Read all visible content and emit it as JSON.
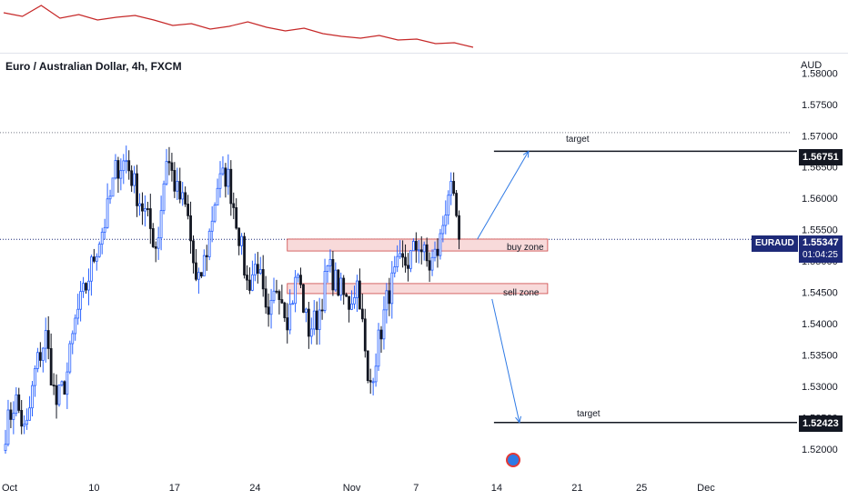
{
  "chart_title": "Euro / Australian Dollar, 4h, FXCM",
  "currency_label": "AUD",
  "colors": {
    "up_candle": "#2962ff",
    "down_candle": "#131722",
    "indicator_line": "#c62828",
    "zone_fill": "#f8dada",
    "zone_border": "#c44",
    "arrow": "#2f7ae5",
    "price_tag": "#1e2a78"
  },
  "annotations": {
    "target_upper": "target",
    "target_lower": "target",
    "buy_zone": "buy zone",
    "sell_zone": "sell zone"
  },
  "price_tags": {
    "upper_target": "1.56751",
    "lower_target": "1.52423",
    "symbol": "EURAUD",
    "current_price": "1.55347",
    "countdown": "01:04:25"
  },
  "chart_data": {
    "type": "candlestick",
    "title": "Euro / Australian Dollar, 4h, FXCM",
    "ylabel": "AUD",
    "ylim": [
      1.5165,
      1.5815
    ],
    "y_ticks": [
      1.58,
      1.575,
      1.57,
      1.565,
      1.56,
      1.555,
      1.55,
      1.545,
      1.54,
      1.535,
      1.53,
      1.525,
      1.52
    ],
    "y_tick_labels": [
      "1.58000",
      "1.57500",
      "1.57000",
      "1.56500",
      "1.56000",
      "1.55500",
      "1.55000",
      "1.54500",
      "1.54000",
      "1.53500",
      "1.53000",
      "1.52500",
      "1.52000"
    ],
    "x_ticks": [
      {
        "label": "Oct",
        "bar": 0
      },
      {
        "label": "10",
        "bar": 33
      },
      {
        "label": "17",
        "bar": 63
      },
      {
        "label": "24",
        "bar": 93
      },
      {
        "label": "Nov",
        "bar": 129
      },
      {
        "label": "7",
        "bar": 153
      },
      {
        "label": "14",
        "bar": 183
      },
      {
        "label": "21",
        "bar": 213
      },
      {
        "label": "25",
        "bar": 237
      },
      {
        "label": "Dec",
        "bar": 261
      }
    ],
    "close_path": [
      1.523,
      1.528,
      1.522,
      1.533,
      1.538,
      1.527,
      1.531,
      1.541,
      1.546,
      1.552,
      1.557,
      1.565,
      1.566,
      1.561,
      1.557,
      1.552,
      1.567,
      1.561,
      1.558,
      1.545,
      1.552,
      1.562,
      1.564,
      1.556,
      1.546,
      1.55,
      1.539,
      1.547,
      1.541,
      1.548,
      1.539,
      1.541,
      1.549,
      1.546,
      1.543,
      1.547,
      1.529,
      1.537,
      1.545,
      1.549,
      1.55,
      1.553,
      1.549,
      1.552,
      1.562,
      1.5547
    ],
    "n_bars": 170,
    "current_price": 1.55347,
    "upper_dotted_level": 1.5705,
    "zones": [
      {
        "name": "buy zone",
        "low": 1.5516,
        "high": 1.5535,
        "from_bar": 105,
        "to_bar": 202
      },
      {
        "name": "sell zone",
        "low": 1.5448,
        "high": 1.5464,
        "from_bar": 105,
        "to_bar": 202
      }
    ],
    "targets": [
      {
        "name": "target",
        "price": 1.56751,
        "from_bar": 182
      },
      {
        "name": "target",
        "price": 1.52423,
        "from_bar": 182
      }
    ],
    "indicator_path": [
      10,
      14,
      2,
      16,
      12,
      18,
      15,
      13,
      18,
      24,
      22,
      28,
      25,
      20,
      26,
      30,
      27,
      33,
      36,
      38,
      35,
      40,
      39,
      44,
      43,
      48
    ],
    "grid": false
  }
}
